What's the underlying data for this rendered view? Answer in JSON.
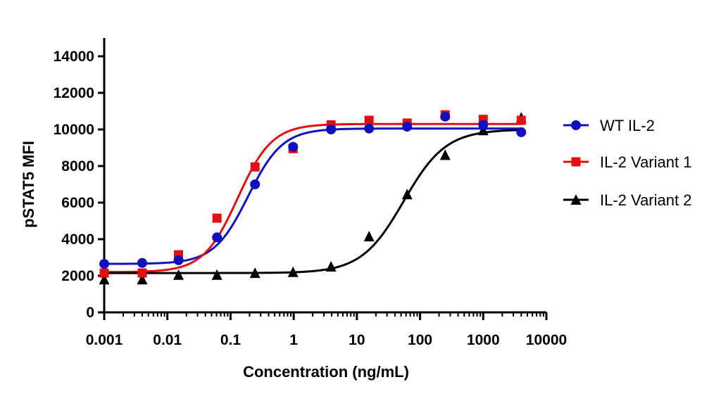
{
  "chart_data": {
    "type": "scatter",
    "title": "",
    "xlabel": "Concentration (ng/mL)",
    "ylabel": "pSTAT5 MFI",
    "x_scale": "log",
    "xlim": [
      0.001,
      10000
    ],
    "ylim": [
      0,
      14000
    ],
    "x_ticks": [
      "0.001",
      "0.01",
      "0.1",
      "1",
      "10",
      "100",
      "1000",
      "10000"
    ],
    "y_ticks": [
      "0",
      "2000",
      "4000",
      "6000",
      "8000",
      "10000",
      "12000",
      "14000"
    ],
    "grid": false,
    "legend_position": "right",
    "series": [
      {
        "name": "WT IL-2",
        "color": "#1010c0",
        "marker": "circle",
        "x": [
          0.001,
          0.004,
          0.015,
          0.061,
          0.244,
          0.977,
          3.9,
          15.6,
          62.5,
          250,
          1000,
          4000
        ],
        "y": [
          2650,
          2700,
          2850,
          4100,
          7000,
          9050,
          10000,
          10050,
          10150,
          10700,
          10250,
          9850
        ],
        "fit": {
          "bottom": 2650,
          "top": 10050,
          "ec50": 0.19,
          "hill": 1.6
        }
      },
      {
        "name": "IL-2 Variant 1",
        "color": "#e01010",
        "marker": "square",
        "x": [
          0.001,
          0.004,
          0.015,
          0.061,
          0.244,
          0.977,
          3.9,
          15.6,
          62.5,
          250,
          1000,
          4000
        ],
        "y": [
          2150,
          2150,
          3150,
          5150,
          7950,
          8950,
          10250,
          10500,
          10350,
          10800,
          10550,
          10500
        ],
        "fit": {
          "bottom": 2200,
          "top": 10300,
          "ec50": 0.13,
          "hill": 1.6
        }
      },
      {
        "name": "IL-2 Variant 2",
        "color": "#000000",
        "marker": "triangle",
        "x": [
          0.001,
          0.004,
          0.015,
          0.061,
          0.244,
          0.977,
          3.9,
          15.6,
          62.5,
          250,
          1000,
          4000
        ],
        "y": [
          1800,
          1800,
          2050,
          2050,
          2150,
          2200,
          2500,
          4150,
          6450,
          8600,
          9950,
          10650
        ],
        "fit": {
          "bottom": 2150,
          "top": 10000,
          "ec50": 55,
          "hill": 1.3
        }
      }
    ]
  }
}
